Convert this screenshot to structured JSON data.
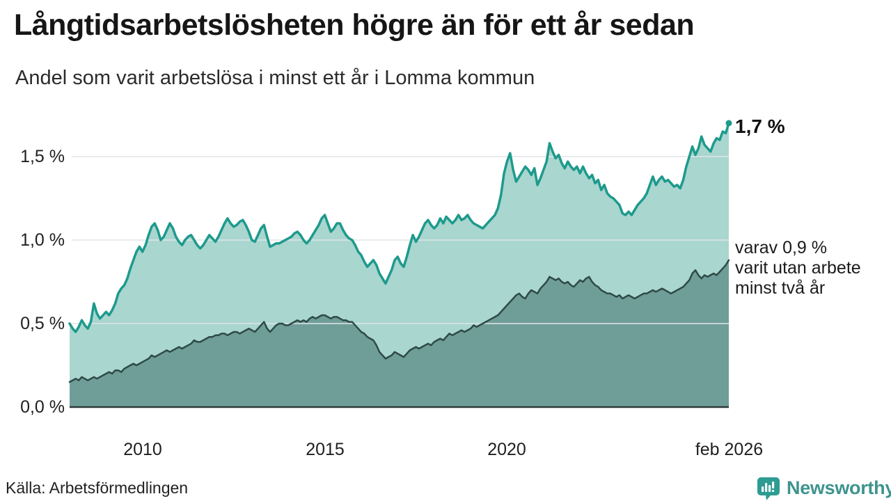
{
  "header": {
    "title": "Långtidsarbetslösheten högre än för ett år sedan",
    "subtitle": "Andel som varit arbetslösa i minst ett år i Lomma kommun"
  },
  "annotations": {
    "latest_value": "1,7 %",
    "secondary": "varav 0,9 %\nvarit utan arbete\nminst två år"
  },
  "footer": {
    "source": "Källa: Arbetsförmedlingen",
    "brand_name": "Newsworthy",
    "brand_icon": "bar-chart-speech-bubble-icon"
  },
  "colors": {
    "primary_line": "#1d9a8c",
    "primary_fill": "#a9d6cf",
    "secondary_line": "#2e4a47",
    "secondary_fill": "#6f9e99",
    "gridline": "#e2e4e8",
    "axis_line": "#2b3a38",
    "brand_teal": "#2d9c93",
    "text": "#1a1a1a"
  },
  "chart_data": {
    "type": "area",
    "title": "Långtidsarbetslösheten högre än för ett år sedan",
    "subtitle": "Andel som varit arbetslösa i minst ett år i Lomma kommun",
    "unit": "%",
    "grid": true,
    "legend_position": "right-annotations",
    "x_axis": {
      "start_year": 2008.0,
      "end_label": "feb 2026",
      "step_months": 1,
      "tick_labels": [
        "2010",
        "2015",
        "2020",
        "feb 2026"
      ],
      "tick_values": [
        2010.0,
        2015.0,
        2020.0,
        2026.083
      ]
    },
    "y_axis": {
      "tick_labels": [
        "0,0 %",
        "0,5 %",
        "1,0 %",
        "1,5 %"
      ],
      "tick_values": [
        0.0,
        0.5,
        1.0,
        1.5
      ],
      "range": [
        0.0,
        1.73
      ]
    },
    "series": [
      {
        "name": "Andel arbetslösa minst ett år",
        "latest_label": "1,7 %",
        "latest_value": 1.7,
        "values": [
          0.5,
          0.47,
          0.45,
          0.48,
          0.52,
          0.49,
          0.47,
          0.51,
          0.62,
          0.56,
          0.53,
          0.55,
          0.57,
          0.55,
          0.58,
          0.62,
          0.68,
          0.71,
          0.73,
          0.77,
          0.83,
          0.88,
          0.93,
          0.96,
          0.93,
          0.97,
          1.03,
          1.08,
          1.1,
          1.06,
          1.0,
          1.02,
          1.06,
          1.1,
          1.07,
          1.02,
          0.99,
          0.97,
          1.0,
          1.02,
          1.03,
          1.0,
          0.97,
          0.95,
          0.97,
          1.0,
          1.03,
          1.01,
          0.99,
          1.02,
          1.06,
          1.1,
          1.13,
          1.1,
          1.08,
          1.09,
          1.11,
          1.12,
          1.09,
          1.05,
          1.0,
          0.99,
          1.03,
          1.07,
          1.09,
          1.02,
          0.96,
          0.97,
          0.98,
          0.98,
          0.99,
          1.0,
          1.01,
          1.02,
          1.04,
          1.05,
          1.03,
          1.0,
          0.98,
          1.0,
          1.03,
          1.06,
          1.09,
          1.13,
          1.15,
          1.1,
          1.05,
          1.07,
          1.1,
          1.1,
          1.06,
          1.03,
          1.01,
          1.0,
          0.97,
          0.93,
          0.91,
          0.87,
          0.84,
          0.86,
          0.88,
          0.85,
          0.8,
          0.77,
          0.74,
          0.78,
          0.82,
          0.88,
          0.9,
          0.86,
          0.84,
          0.9,
          0.97,
          1.03,
          0.99,
          1.02,
          1.06,
          1.1,
          1.12,
          1.09,
          1.07,
          1.09,
          1.13,
          1.1,
          1.14,
          1.12,
          1.1,
          1.12,
          1.15,
          1.12,
          1.13,
          1.15,
          1.12,
          1.1,
          1.09,
          1.08,
          1.07,
          1.09,
          1.11,
          1.13,
          1.15,
          1.19,
          1.27,
          1.4,
          1.47,
          1.52,
          1.42,
          1.35,
          1.38,
          1.41,
          1.44,
          1.42,
          1.39,
          1.43,
          1.33,
          1.37,
          1.42,
          1.47,
          1.58,
          1.53,
          1.49,
          1.51,
          1.46,
          1.43,
          1.47,
          1.44,
          1.42,
          1.44,
          1.4,
          1.44,
          1.4,
          1.37,
          1.39,
          1.34,
          1.36,
          1.3,
          1.33,
          1.28,
          1.26,
          1.25,
          1.23,
          1.21,
          1.16,
          1.15,
          1.17,
          1.15,
          1.18,
          1.21,
          1.23,
          1.25,
          1.28,
          1.33,
          1.38,
          1.33,
          1.36,
          1.38,
          1.35,
          1.36,
          1.34,
          1.32,
          1.33,
          1.31,
          1.36,
          1.44,
          1.5,
          1.56,
          1.51,
          1.55,
          1.62,
          1.57,
          1.55,
          1.53,
          1.58,
          1.61,
          1.6,
          1.65,
          1.64,
          1.7
        ]
      },
      {
        "name": "Andel arbetslösa minst två år",
        "latest_label": "0,9 %",
        "latest_value": 0.9,
        "values": [
          0.15,
          0.16,
          0.17,
          0.16,
          0.18,
          0.17,
          0.16,
          0.17,
          0.18,
          0.17,
          0.18,
          0.19,
          0.2,
          0.21,
          0.2,
          0.22,
          0.22,
          0.21,
          0.23,
          0.24,
          0.25,
          0.26,
          0.25,
          0.26,
          0.27,
          0.28,
          0.29,
          0.31,
          0.3,
          0.31,
          0.32,
          0.33,
          0.34,
          0.33,
          0.34,
          0.35,
          0.36,
          0.35,
          0.36,
          0.37,
          0.38,
          0.4,
          0.39,
          0.39,
          0.4,
          0.41,
          0.42,
          0.42,
          0.43,
          0.43,
          0.44,
          0.44,
          0.43,
          0.44,
          0.45,
          0.45,
          0.44,
          0.45,
          0.46,
          0.47,
          0.46,
          0.45,
          0.47,
          0.49,
          0.51,
          0.47,
          0.45,
          0.47,
          0.49,
          0.5,
          0.5,
          0.49,
          0.49,
          0.5,
          0.51,
          0.52,
          0.51,
          0.52,
          0.51,
          0.53,
          0.54,
          0.53,
          0.54,
          0.55,
          0.55,
          0.54,
          0.53,
          0.54,
          0.54,
          0.53,
          0.52,
          0.52,
          0.51,
          0.51,
          0.49,
          0.47,
          0.45,
          0.44,
          0.42,
          0.41,
          0.4,
          0.37,
          0.33,
          0.31,
          0.29,
          0.3,
          0.31,
          0.33,
          0.32,
          0.31,
          0.3,
          0.32,
          0.34,
          0.35,
          0.36,
          0.35,
          0.36,
          0.37,
          0.38,
          0.37,
          0.39,
          0.4,
          0.41,
          0.4,
          0.42,
          0.44,
          0.43,
          0.44,
          0.45,
          0.46,
          0.45,
          0.46,
          0.47,
          0.49,
          0.48,
          0.49,
          0.5,
          0.51,
          0.52,
          0.53,
          0.54,
          0.55,
          0.57,
          0.59,
          0.61,
          0.63,
          0.65,
          0.67,
          0.68,
          0.66,
          0.65,
          0.68,
          0.7,
          0.69,
          0.68,
          0.71,
          0.73,
          0.75,
          0.78,
          0.77,
          0.76,
          0.77,
          0.75,
          0.74,
          0.75,
          0.73,
          0.72,
          0.74,
          0.76,
          0.75,
          0.77,
          0.78,
          0.75,
          0.73,
          0.72,
          0.7,
          0.69,
          0.68,
          0.68,
          0.67,
          0.66,
          0.67,
          0.65,
          0.66,
          0.67,
          0.66,
          0.65,
          0.66,
          0.67,
          0.68,
          0.68,
          0.69,
          0.7,
          0.69,
          0.7,
          0.71,
          0.7,
          0.69,
          0.68,
          0.69,
          0.7,
          0.71,
          0.72,
          0.74,
          0.76,
          0.8,
          0.82,
          0.79,
          0.77,
          0.79,
          0.78,
          0.79,
          0.8,
          0.79,
          0.81,
          0.83,
          0.85,
          0.88
        ]
      }
    ]
  }
}
